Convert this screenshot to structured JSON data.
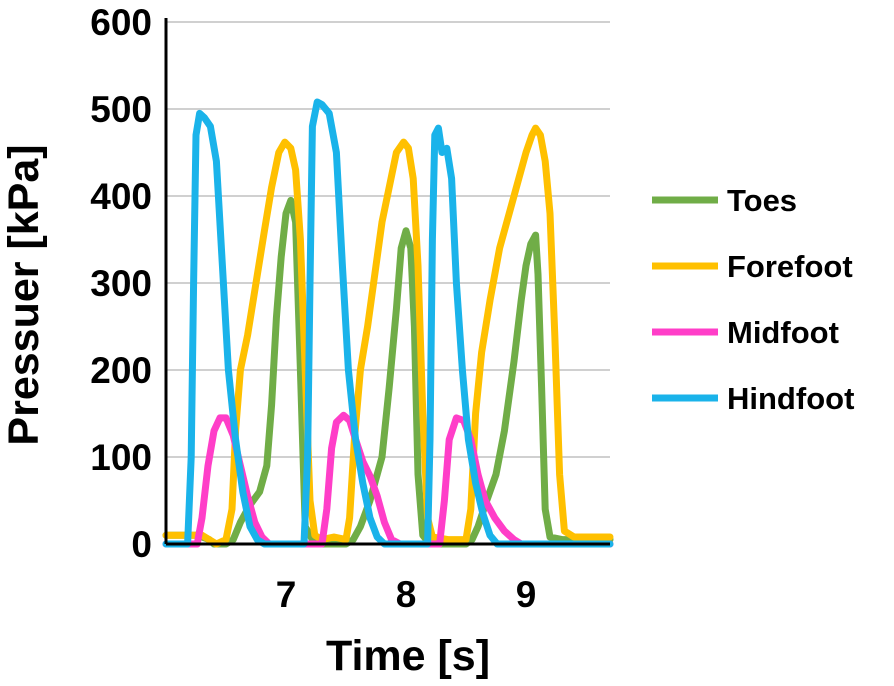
{
  "chart_data": {
    "type": "line",
    "title": "",
    "xlabel": "Time [s]",
    "ylabel": "Pressuer [kPa]",
    "xlim": [
      6.0,
      9.7
    ],
    "ylim": [
      0,
      600
    ],
    "x_ticks": [
      7,
      8,
      9
    ],
    "y_ticks": [
      0,
      100,
      200,
      300,
      400,
      500,
      600
    ],
    "grid": "horizontal",
    "legend_position": "right",
    "series": [
      {
        "name": "Toes",
        "color": "#70AD47",
        "points": [
          [
            6.0,
            10
          ],
          [
            6.25,
            10
          ],
          [
            6.3,
            8
          ],
          [
            6.36,
            5
          ],
          [
            6.4,
            0
          ],
          [
            6.5,
            0
          ],
          [
            6.56,
            5
          ],
          [
            6.62,
            25
          ],
          [
            6.7,
            45
          ],
          [
            6.78,
            60
          ],
          [
            6.84,
            90
          ],
          [
            6.88,
            160
          ],
          [
            6.92,
            260
          ],
          [
            6.96,
            330
          ],
          [
            7.0,
            380
          ],
          [
            7.04,
            395
          ],
          [
            7.08,
            370
          ],
          [
            7.12,
            200
          ],
          [
            7.16,
            20
          ],
          [
            7.22,
            5
          ],
          [
            7.3,
            0
          ],
          [
            7.4,
            0
          ],
          [
            7.5,
            0
          ],
          [
            7.56,
            5
          ],
          [
            7.62,
            20
          ],
          [
            7.7,
            50
          ],
          [
            7.8,
            100
          ],
          [
            7.86,
            180
          ],
          [
            7.92,
            270
          ],
          [
            7.96,
            340
          ],
          [
            8.0,
            360
          ],
          [
            8.04,
            340
          ],
          [
            8.07,
            250
          ],
          [
            8.1,
            80
          ],
          [
            8.14,
            10
          ],
          [
            8.2,
            0
          ],
          [
            8.5,
            0
          ],
          [
            8.55,
            5
          ],
          [
            8.6,
            20
          ],
          [
            8.66,
            45
          ],
          [
            8.75,
            80
          ],
          [
            8.82,
            130
          ],
          [
            8.9,
            210
          ],
          [
            8.96,
            280
          ],
          [
            9.0,
            320
          ],
          [
            9.04,
            345
          ],
          [
            9.08,
            355
          ],
          [
            9.1,
            310
          ],
          [
            9.13,
            180
          ],
          [
            9.16,
            40
          ],
          [
            9.2,
            8
          ],
          [
            9.3,
            5
          ],
          [
            9.7,
            5
          ]
        ]
      },
      {
        "name": "Forefoot",
        "color": "#FFC000",
        "points": [
          [
            6.0,
            10
          ],
          [
            6.3,
            10
          ],
          [
            6.36,
            5
          ],
          [
            6.42,
            0
          ],
          [
            6.5,
            5
          ],
          [
            6.55,
            40
          ],
          [
            6.58,
            130
          ],
          [
            6.62,
            200
          ],
          [
            6.68,
            240
          ],
          [
            6.75,
            300
          ],
          [
            6.82,
            360
          ],
          [
            6.88,
            410
          ],
          [
            6.94,
            450
          ],
          [
            6.99,
            462
          ],
          [
            7.04,
            455
          ],
          [
            7.08,
            430
          ],
          [
            7.12,
            350
          ],
          [
            7.16,
            200
          ],
          [
            7.2,
            50
          ],
          [
            7.24,
            10
          ],
          [
            7.3,
            5
          ],
          [
            7.4,
            8
          ],
          [
            7.5,
            5
          ],
          [
            7.53,
            30
          ],
          [
            7.57,
            120
          ],
          [
            7.62,
            200
          ],
          [
            7.68,
            250
          ],
          [
            7.74,
            310
          ],
          [
            7.8,
            370
          ],
          [
            7.86,
            410
          ],
          [
            7.92,
            450
          ],
          [
            7.98,
            462
          ],
          [
            8.02,
            455
          ],
          [
            8.06,
            420
          ],
          [
            8.1,
            320
          ],
          [
            8.14,
            150
          ],
          [
            8.18,
            30
          ],
          [
            8.22,
            8
          ],
          [
            8.35,
            5
          ],
          [
            8.5,
            5
          ],
          [
            8.54,
            40
          ],
          [
            8.58,
            150
          ],
          [
            8.63,
            220
          ],
          [
            8.7,
            280
          ],
          [
            8.78,
            340
          ],
          [
            8.86,
            380
          ],
          [
            8.94,
            420
          ],
          [
            9.0,
            450
          ],
          [
            9.05,
            470
          ],
          [
            9.08,
            478
          ],
          [
            9.12,
            470
          ],
          [
            9.16,
            440
          ],
          [
            9.2,
            380
          ],
          [
            9.24,
            240
          ],
          [
            9.28,
            80
          ],
          [
            9.32,
            15
          ],
          [
            9.4,
            8
          ],
          [
            9.7,
            8
          ]
        ]
      },
      {
        "name": "Midfoot",
        "color": "#FF3EC8",
        "points": [
          [
            6.0,
            0
          ],
          [
            6.26,
            0
          ],
          [
            6.3,
            30
          ],
          [
            6.35,
            90
          ],
          [
            6.4,
            130
          ],
          [
            6.45,
            145
          ],
          [
            6.5,
            145
          ],
          [
            6.56,
            125
          ],
          [
            6.62,
            90
          ],
          [
            6.68,
            55
          ],
          [
            6.74,
            25
          ],
          [
            6.8,
            8
          ],
          [
            6.86,
            0
          ],
          [
            7.3,
            0
          ],
          [
            7.34,
            40
          ],
          [
            7.38,
            110
          ],
          [
            7.42,
            140
          ],
          [
            7.48,
            148
          ],
          [
            7.53,
            142
          ],
          [
            7.58,
            120
          ],
          [
            7.64,
            95
          ],
          [
            7.7,
            78
          ],
          [
            7.76,
            55
          ],
          [
            7.82,
            25
          ],
          [
            7.88,
            5
          ],
          [
            7.95,
            0
          ],
          [
            8.28,
            0
          ],
          [
            8.32,
            50
          ],
          [
            8.36,
            120
          ],
          [
            8.42,
            145
          ],
          [
            8.48,
            142
          ],
          [
            8.54,
            120
          ],
          [
            8.6,
            80
          ],
          [
            8.66,
            50
          ],
          [
            8.74,
            30
          ],
          [
            8.82,
            15
          ],
          [
            8.9,
            5
          ],
          [
            8.96,
            0
          ],
          [
            9.7,
            0
          ]
        ]
      },
      {
        "name": "Hindfoot",
        "color": "#1AB3EA",
        "points": [
          [
            6.0,
            0
          ],
          [
            6.18,
            0
          ],
          [
            6.21,
            100
          ],
          [
            6.23,
            300
          ],
          [
            6.25,
            470
          ],
          [
            6.28,
            495
          ],
          [
            6.32,
            490
          ],
          [
            6.37,
            480
          ],
          [
            6.42,
            440
          ],
          [
            6.47,
            320
          ],
          [
            6.52,
            200
          ],
          [
            6.58,
            120
          ],
          [
            6.64,
            60
          ],
          [
            6.7,
            20
          ],
          [
            6.76,
            5
          ],
          [
            6.82,
            0
          ],
          [
            7.15,
            0
          ],
          [
            7.18,
            100
          ],
          [
            7.2,
            300
          ],
          [
            7.22,
            480
          ],
          [
            7.26,
            508
          ],
          [
            7.3,
            505
          ],
          [
            7.36,
            495
          ],
          [
            7.42,
            450
          ],
          [
            7.47,
            320
          ],
          [
            7.52,
            200
          ],
          [
            7.58,
            120
          ],
          [
            7.64,
            70
          ],
          [
            7.7,
            30
          ],
          [
            7.76,
            8
          ],
          [
            7.82,
            0
          ],
          [
            8.18,
            0
          ],
          [
            8.2,
            120
          ],
          [
            8.22,
            350
          ],
          [
            8.24,
            470
          ],
          [
            8.27,
            478
          ],
          [
            8.3,
            450
          ],
          [
            8.34,
            455
          ],
          [
            8.38,
            420
          ],
          [
            8.42,
            300
          ],
          [
            8.47,
            200
          ],
          [
            8.52,
            120
          ],
          [
            8.58,
            70
          ],
          [
            8.64,
            35
          ],
          [
            8.7,
            10
          ],
          [
            8.76,
            0
          ],
          [
            9.7,
            0
          ]
        ]
      }
    ]
  }
}
